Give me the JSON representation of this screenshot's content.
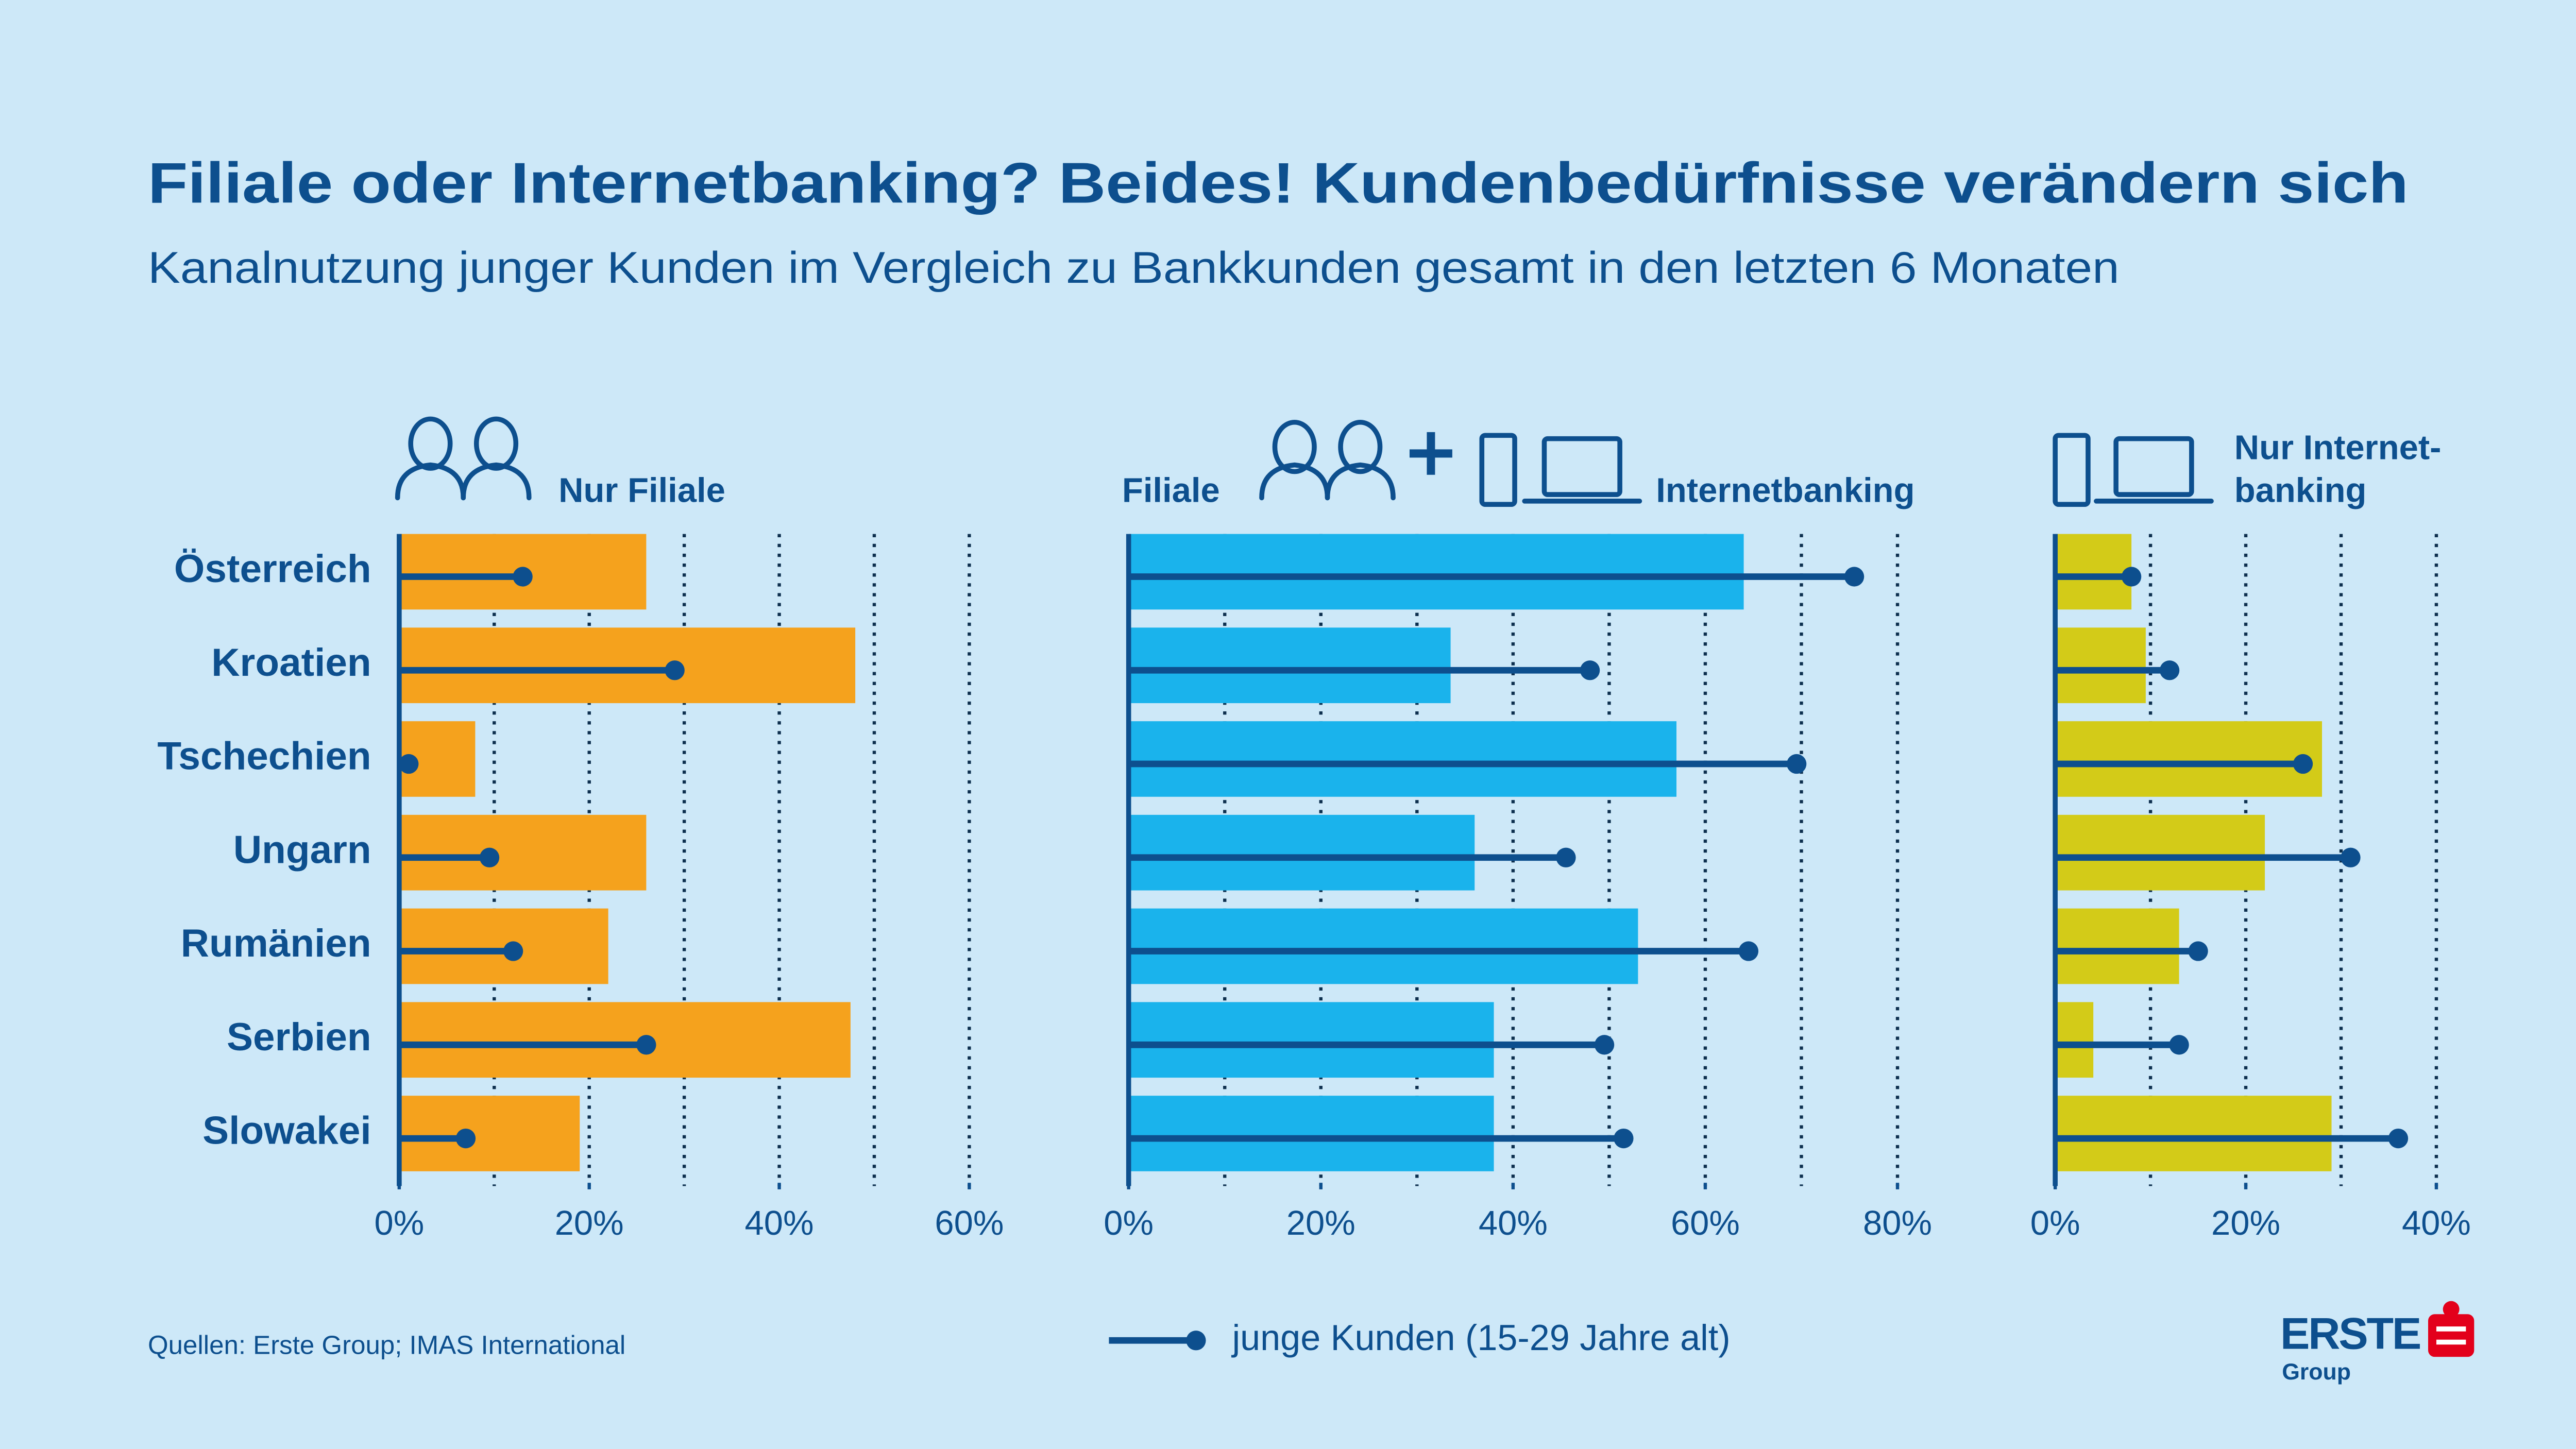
{
  "title": "Filiale oder Internetbanking? Beides! Kundenbedürfnisse verändern sich",
  "subtitle": "Kanalnutzung junger Kunden im Vergleich zu Bankkunden gesamt in den letzten 6 Monaten",
  "source": "Quellen: Erste Group; IMAS International",
  "logo": {
    "name": "ERSTE",
    "sub": "Group"
  },
  "chart_data": {
    "type": "bar",
    "categories": [
      "Österreich",
      "Kroatien",
      "Tschechien",
      "Ungarn",
      "Rumänien",
      "Serbien",
      "Slowakei"
    ],
    "legend": {
      "label": "junge Kunden (15-29 Jahre alt)",
      "color": "#0d4f8e"
    },
    "panels": [
      {
        "title": [
          "Nur Filiale"
        ],
        "xlim": [
          0,
          60
        ],
        "xticks": [
          {
            "value": 0,
            "label": "0%"
          },
          {
            "value": 20,
            "label": "20%"
          },
          {
            "value": 40,
            "label": "40%"
          },
          {
            "value": 60,
            "label": "60%"
          }
        ],
        "grid": [
          10,
          20,
          30,
          40,
          50,
          60
        ],
        "series": [
          {
            "color": "#f5a21d",
            "values": [
              26,
              48,
              8,
              26,
              22,
              47.5,
              19
            ]
          },
          {
            "color": "#0d4f8e",
            "values": [
              13,
              29,
              1,
              9.5,
              12,
              26,
              7
            ]
          }
        ]
      },
      {
        "title": [
          "Filiale",
          "Internetbanking"
        ],
        "xlim": [
          0,
          80
        ],
        "xticks": [
          {
            "value": 0,
            "label": "0%"
          },
          {
            "value": 20,
            "label": "20%"
          },
          {
            "value": 40,
            "label": "40%"
          },
          {
            "value": 60,
            "label": "60%"
          },
          {
            "value": 80,
            "label": "80%"
          }
        ],
        "grid": [
          10,
          20,
          30,
          40,
          50,
          60,
          70,
          80
        ],
        "series": [
          {
            "color": "#1ab3ec",
            "values": [
              64,
              33.5,
              57,
              36,
              53,
              38,
              38
            ]
          },
          {
            "color": "#0d4f8e",
            "values": [
              75.5,
              48,
              69.5,
              45.5,
              64.5,
              49.5,
              51.5
            ]
          }
        ]
      },
      {
        "title": [
          "Nur Internet-",
          "banking"
        ],
        "xlim": [
          0,
          40
        ],
        "xticks": [
          {
            "value": 0,
            "label": "0%"
          },
          {
            "value": 20,
            "label": "20%"
          },
          {
            "value": 40,
            "label": "40%"
          }
        ],
        "grid": [
          10,
          20,
          30,
          40
        ],
        "series": [
          {
            "color": "#d3cb18",
            "values": [
              8,
              9.5,
              28,
              22,
              13,
              4,
              29
            ]
          },
          {
            "color": "#0d4f8e",
            "values": [
              8,
              12,
              26,
              31,
              15,
              13,
              36
            ]
          }
        ]
      }
    ]
  }
}
